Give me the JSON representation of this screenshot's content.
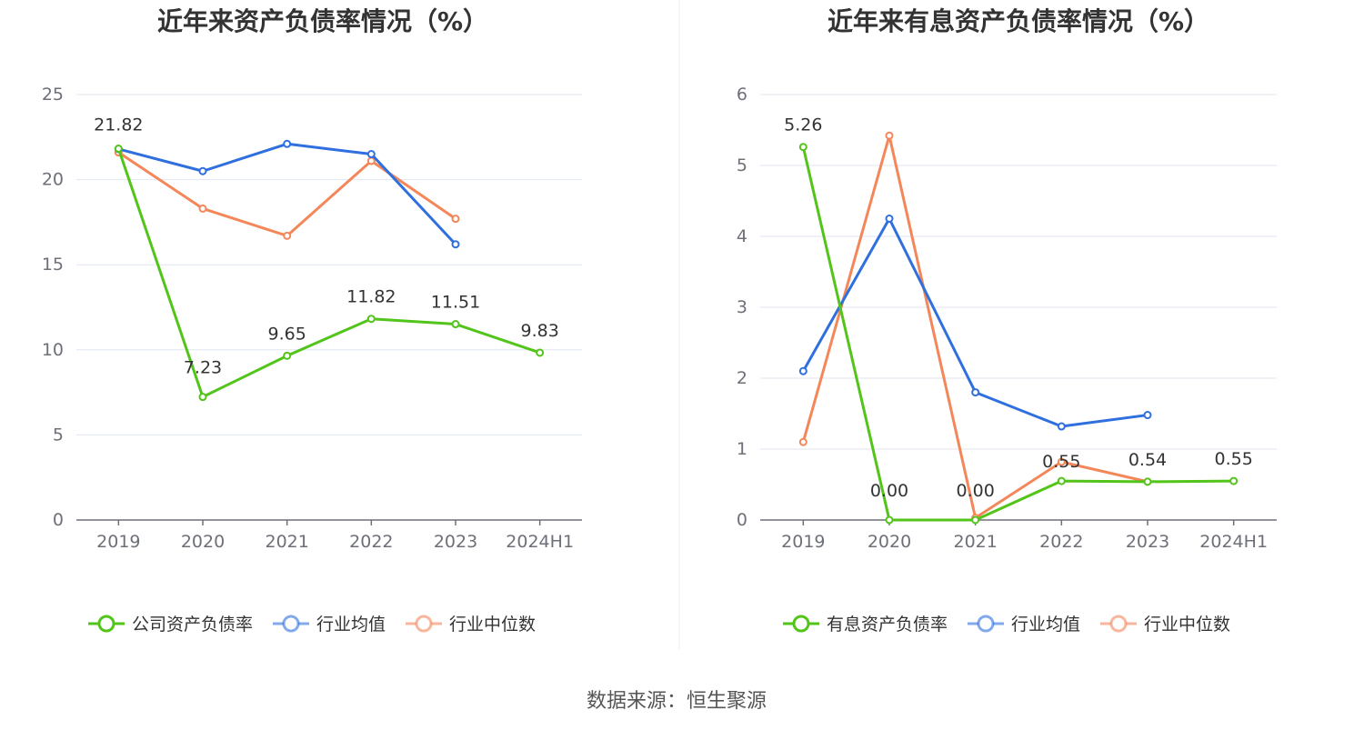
{
  "source_note": "数据来源：恒生聚源",
  "chart_data": [
    {
      "type": "line",
      "title": "近年来资产负债率情况（%）",
      "categories": [
        "2019",
        "2020",
        "2021",
        "2022",
        "2023",
        "2024H1"
      ],
      "ylim": [
        0,
        25
      ],
      "yticks": [
        0,
        5,
        10,
        15,
        20,
        25
      ],
      "grid": true,
      "legend_position": "bottom",
      "series": [
        {
          "name": "公司资产负债率",
          "color": "#52c41a",
          "values": [
            21.82,
            7.23,
            9.65,
            11.82,
            11.51,
            9.83
          ],
          "labels": [
            "21.82",
            "7.23",
            "9.65",
            "11.82",
            "11.51",
            "9.83"
          ]
        },
        {
          "name": "行业均值",
          "color": "#2f6fde",
          "values": [
            21.8,
            20.5,
            22.1,
            21.5,
            16.2,
            null
          ]
        },
        {
          "name": "行业中位数",
          "color": "#f4875a",
          "values": [
            21.6,
            18.3,
            16.7,
            21.1,
            17.7,
            null
          ]
        }
      ]
    },
    {
      "type": "line",
      "title": "近年来有息资产负债率情况（%）",
      "categories": [
        "2019",
        "2020",
        "2021",
        "2022",
        "2023",
        "2024H1"
      ],
      "ylim": [
        0,
        6
      ],
      "yticks": [
        0,
        1,
        2,
        3,
        4,
        5,
        6
      ],
      "grid": true,
      "legend_position": "bottom",
      "series": [
        {
          "name": "有息资产负债率",
          "color": "#52c41a",
          "values": [
            5.26,
            0.0,
            0.0,
            0.55,
            0.54,
            0.55
          ],
          "labels": [
            "5.26",
            "0.00",
            "0.00",
            "0.55",
            "0.54",
            "0.55"
          ]
        },
        {
          "name": "行业均值",
          "color": "#2f6fde",
          "values": [
            2.1,
            4.25,
            1.8,
            1.32,
            1.48,
            null
          ]
        },
        {
          "name": "行业中位数",
          "color": "#f4875a",
          "values": [
            1.1,
            5.42,
            0.03,
            0.82,
            0.54,
            null
          ]
        }
      ]
    }
  ]
}
